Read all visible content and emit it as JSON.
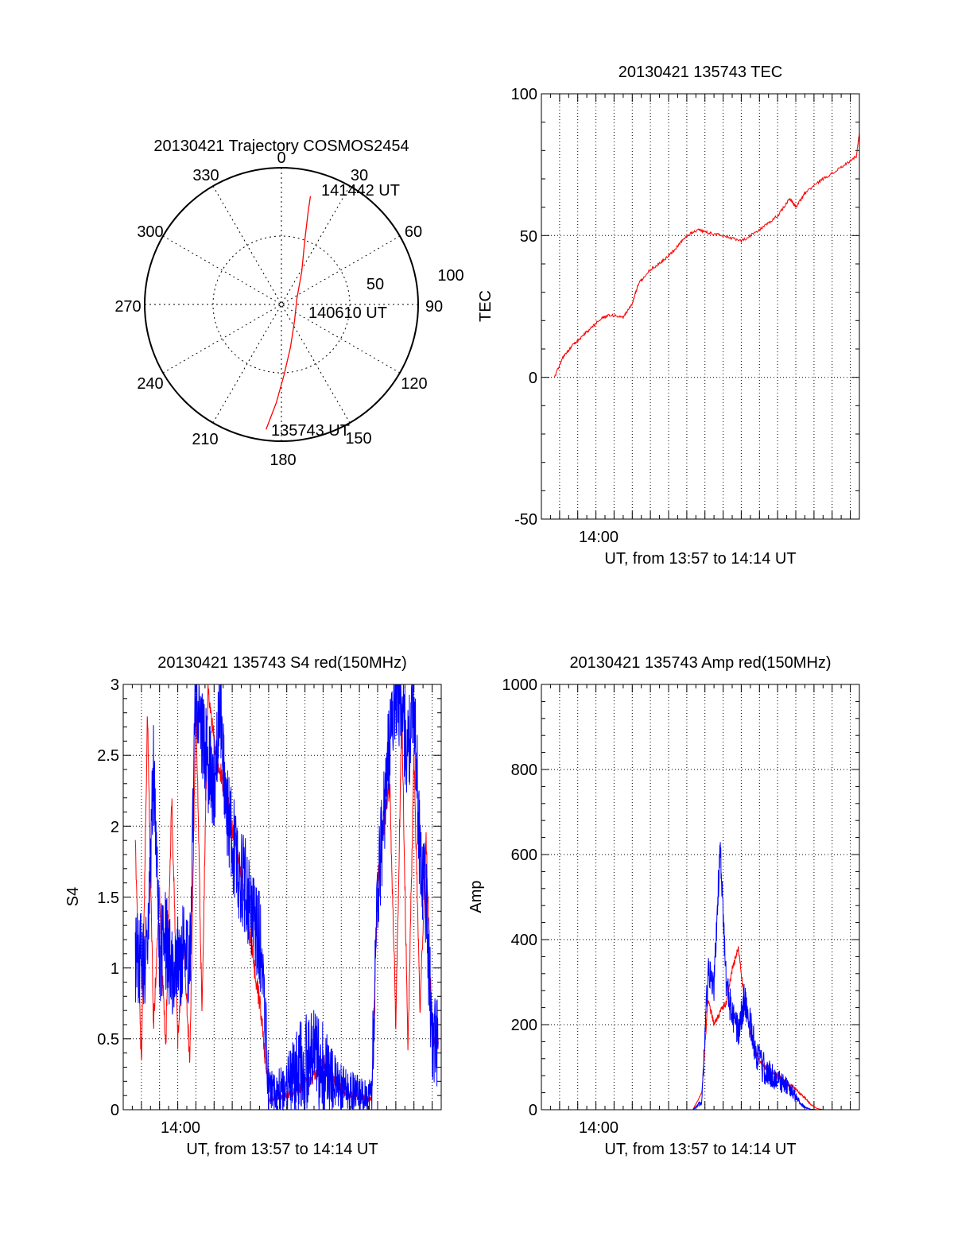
{
  "chart_data": [
    {
      "type": "polar",
      "title": "20130421 Trajectory COSMOS2454",
      "azimuth_ticks": [
        "0",
        "30",
        "60",
        "90",
        "120",
        "150",
        "180",
        "210",
        "240",
        "270",
        "300",
        "330"
      ],
      "radial_ticks": [
        "50",
        "100"
      ],
      "radial_range": [
        0,
        100
      ],
      "grid": true,
      "series": [
        {
          "color": "#ff0000",
          "points": [
            {
              "az": 187,
              "r": 92
            },
            {
              "az": 183,
              "r": 72
            },
            {
              "az": 178,
              "r": 52
            },
            {
              "az": 168,
              "r": 32
            },
            {
              "az": 140,
              "r": 15
            },
            {
              "az": 70,
              "r": 12
            },
            {
              "az": 32,
              "r": 28
            },
            {
              "az": 20,
              "r": 50
            },
            {
              "az": 16,
              "r": 71
            },
            {
              "az": 15,
              "r": 82
            }
          ]
        }
      ],
      "annotations": [
        {
          "text": "141442 UT",
          "az": 15,
          "r": 82
        },
        {
          "text": "140610 UT",
          "az": 80,
          "r": 6
        },
        {
          "text": "135743 UT",
          "az": 187,
          "r": 92
        }
      ]
    },
    {
      "type": "line",
      "title": "20130421 135743 TEC",
      "ylabel": "TEC",
      "xlabel": "UT, from 13:57 to 14:14 UT",
      "xlim": [
        "13:57:00",
        "14:14:30"
      ],
      "ylim": [
        -50,
        100
      ],
      "y_ticks": [
        "-50",
        "0",
        "50",
        "100"
      ],
      "x_ticks": [
        "14:00"
      ],
      "grid": true,
      "series": [
        {
          "color": "#ff0000",
          "x": [
            "13:57:43",
            "13:58:10",
            "13:58:40",
            "13:59:10",
            "13:59:40",
            "14:00:20",
            "14:00:50",
            "14:01:30",
            "14:02:00",
            "14:02:20",
            "14:03:00",
            "14:03:40",
            "14:04:20",
            "14:05:00",
            "14:05:40",
            "14:06:10",
            "14:07:00",
            "14:08:00",
            "14:09:00",
            "14:10:00",
            "14:10:40",
            "14:11:00",
            "14:11:30",
            "14:12:30",
            "14:13:30",
            "14:14:20",
            "14:14:30"
          ],
          "values": [
            0,
            7,
            11,
            14,
            17,
            21,
            22,
            21,
            26,
            33,
            38,
            41,
            45,
            50,
            52,
            51,
            50,
            48,
            52,
            57,
            63,
            60,
            65,
            70,
            74,
            78,
            86
          ]
        }
      ]
    },
    {
      "type": "line",
      "title": "20130421 135743 S4 red(150MHz)",
      "ylabel": "S4",
      "xlabel": "UT, from 13:57 to 14:14 UT",
      "xlim": [
        "13:57:00",
        "14:14:30"
      ],
      "ylim": [
        0,
        3
      ],
      "y_ticks": [
        "0",
        "0.5",
        "1",
        "1.5",
        "2",
        "2.5",
        "3"
      ],
      "x_ticks": [
        "14:00"
      ],
      "grid": true,
      "series": [
        {
          "color": "#ff0000",
          "x": [
            "13:57:40",
            "13:58:00",
            "13:58:20",
            "13:58:40",
            "13:59:00",
            "13:59:20",
            "13:59:40",
            "14:00:00",
            "14:00:20",
            "14:00:40",
            "14:01:00",
            "14:01:20",
            "14:01:40",
            "14:02:00",
            "14:02:20",
            "14:02:40",
            "14:03:00",
            "14:03:20",
            "14:03:40",
            "14:04:00",
            "14:04:20",
            "14:04:40",
            "14:05:00",
            "14:05:20",
            "14:05:40",
            "14:06:00",
            "14:06:20",
            "14:06:40",
            "14:07:00",
            "14:07:20",
            "14:07:40",
            "14:08:00",
            "14:08:20",
            "14:08:40",
            "14:09:00",
            "14:09:20",
            "14:09:40",
            "14:10:00",
            "14:10:20",
            "14:10:40",
            "14:11:00",
            "14:11:20",
            "14:11:40",
            "14:12:00",
            "14:12:20",
            "14:12:40",
            "14:13:00",
            "14:13:20",
            "14:13:40",
            "14:14:00",
            "14:14:20"
          ],
          "values": [
            1.9,
            0.3,
            2.8,
            0.6,
            1.5,
            0.4,
            2.2,
            0.5,
            1.2,
            0.3,
            2.9,
            0.7,
            3.0,
            2.6,
            2.4,
            2.2,
            2.0,
            1.8,
            1.5,
            1.2,
            0.9,
            0.6,
            0.08,
            0.07,
            0.09,
            0.11,
            0.12,
            0.15,
            0.18,
            0.22,
            0.27,
            0.35,
            0.28,
            0.2,
            0.15,
            0.12,
            0.1,
            0.09,
            0.08,
            0.07,
            1.6,
            2.0,
            2.3,
            0.6,
            2.8,
            0.4,
            2.5,
            0.7,
            1.9,
            0.5,
            0.5
          ]
        },
        {
          "color": "#0000ff",
          "x": [
            "13:57:40",
            "13:58:00",
            "13:58:20",
            "13:58:40",
            "13:59:00",
            "13:59:20",
            "13:59:40",
            "14:00:00",
            "14:00:20",
            "14:00:40",
            "14:01:00",
            "14:01:20",
            "14:01:40",
            "14:02:00",
            "14:02:20",
            "14:02:40",
            "14:03:00",
            "14:03:20",
            "14:03:40",
            "14:04:00",
            "14:04:20",
            "14:04:40",
            "14:05:00",
            "14:05:20",
            "14:05:40",
            "14:06:00",
            "14:06:20",
            "14:06:40",
            "14:07:00",
            "14:07:20",
            "14:07:40",
            "14:08:00",
            "14:08:20",
            "14:08:40",
            "14:09:00",
            "14:09:20",
            "14:09:40",
            "14:10:00",
            "14:10:20",
            "14:10:40",
            "14:11:00",
            "14:11:20",
            "14:11:40",
            "14:12:00",
            "14:12:20",
            "14:12:40",
            "14:13:00",
            "14:13:20",
            "14:13:40",
            "14:14:00",
            "14:14:20"
          ],
          "values": [
            1.05,
            1.1,
            1.0,
            2.4,
            1.1,
            1.2,
            1.0,
            1.05,
            1.1,
            1.0,
            3.0,
            2.7,
            2.4,
            2.3,
            2.8,
            2.1,
            1.9,
            1.7,
            1.6,
            1.4,
            1.3,
            1.1,
            0.15,
            0.12,
            0.15,
            0.18,
            0.22,
            0.28,
            0.32,
            0.38,
            0.35,
            0.3,
            0.22,
            0.18,
            0.15,
            0.13,
            0.12,
            0.11,
            0.1,
            0.12,
            1.5,
            2.1,
            2.6,
            3.0,
            2.8,
            2.5,
            2.9,
            1.8,
            1.5,
            0.5,
            0.48
          ]
        }
      ]
    },
    {
      "type": "line",
      "title": "20130421 135743 Amp red(150MHz)",
      "ylabel": "Amp",
      "xlabel": "UT, from 13:57 to 14:14 UT",
      "xlim": [
        "13:57:00",
        "14:14:30"
      ],
      "ylim": [
        0,
        1000
      ],
      "y_ticks": [
        "0",
        "200",
        "400",
        "600",
        "800",
        "1000"
      ],
      "x_ticks": [
        "14:00"
      ],
      "grid": true,
      "series": [
        {
          "color": "#ff0000",
          "x": [
            "13:57:40",
            "14:00:00",
            "14:03:00",
            "14:05:20",
            "14:05:50",
            "14:06:10",
            "14:06:30",
            "14:06:50",
            "14:07:10",
            "14:07:30",
            "14:07:50",
            "14:08:10",
            "14:08:30",
            "14:08:50",
            "14:09:10",
            "14:09:30",
            "14:09:50",
            "14:10:10",
            "14:10:30",
            "14:10:50",
            "14:11:10",
            "14:11:30",
            "14:11:50",
            "14:12:10",
            "14:12:30",
            "14:14:20"
          ],
          "values": [
            0,
            0,
            0,
            0,
            40,
            260,
            200,
            230,
            250,
            330,
            380,
            260,
            180,
            130,
            110,
            90,
            85,
            75,
            60,
            55,
            40,
            28,
            12,
            3,
            0,
            0
          ]
        },
        {
          "color": "#0000ff",
          "x": [
            "13:57:40",
            "14:00:00",
            "14:03:00",
            "14:05:20",
            "14:05:50",
            "14:06:10",
            "14:06:30",
            "14:06:50",
            "14:07:10",
            "14:07:30",
            "14:07:50",
            "14:08:10",
            "14:08:30",
            "14:08:50",
            "14:09:10",
            "14:09:30",
            "14:09:50",
            "14:10:10",
            "14:10:30",
            "14:10:50",
            "14:11:10",
            "14:11:30",
            "14:11:50",
            "14:12:10",
            "14:12:30",
            "14:14:20"
          ],
          "values": [
            0,
            0,
            0,
            0,
            20,
            320,
            290,
            620,
            300,
            220,
            180,
            260,
            200,
            130,
            100,
            85,
            75,
            65,
            55,
            40,
            20,
            5,
            1,
            0,
            0,
            0
          ]
        }
      ]
    }
  ]
}
